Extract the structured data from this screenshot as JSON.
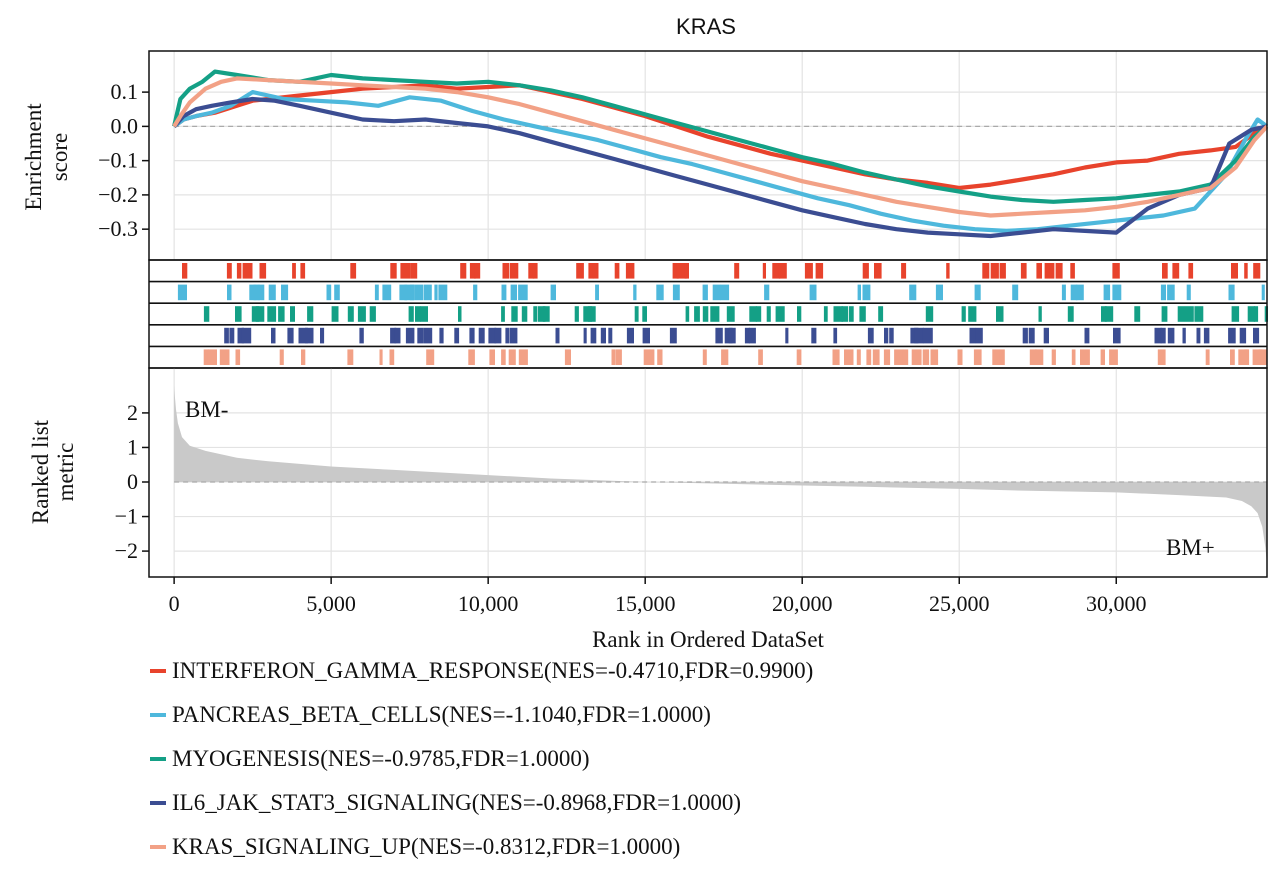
{
  "chart_data": {
    "type": "line",
    "title": "KRAS",
    "xlabel": "Rank in Ordered DataSet",
    "ylabel_top": [
      "Enrichment",
      "score"
    ],
    "ylabel_bottom": [
      "Ranked list",
      "metric"
    ],
    "xlim": [
      -800,
      34800
    ],
    "x_ticks": [
      0,
      5000,
      10000,
      15000,
      20000,
      25000,
      30000
    ],
    "x_tick_labels": [
      "0",
      "5,000",
      "10,000",
      "15,000",
      "20,000",
      "25,000",
      "30,000"
    ],
    "es_ylim": [
      -0.39,
      0.22
    ],
    "es_ticks": [
      0.1,
      0.0,
      -0.1,
      -0.2,
      -0.3
    ],
    "es_tick_labels": [
      "0.1",
      "0.0",
      "−0.1",
      "−0.2",
      "−0.3"
    ],
    "metric_ylim": [
      -2.75,
      3.3
    ],
    "metric_ticks": [
      2,
      1,
      0,
      -1,
      -2
    ],
    "metric_tick_labels": [
      "2",
      "1",
      "0",
      "−1",
      "−2"
    ],
    "grid": true,
    "left_annotation": "BM-",
    "right_annotation": "BM+",
    "legend_position": "bottom",
    "series": [
      {
        "name": "INTERFERON_GAMMA_RESPONSE(NES=-0.4710,FDR=0.9900)",
        "color": "#e8432c",
        "x": [
          0,
          300,
          700,
          1300,
          2000,
          2500,
          3000,
          4000,
          5000,
          6000,
          7000,
          8000,
          9000,
          10000,
          11000,
          12000,
          13000,
          14000,
          15000,
          16000,
          17000,
          18000,
          19000,
          20000,
          21000,
          22000,
          23000,
          24000,
          25000,
          26000,
          27000,
          28000,
          29000,
          30000,
          31000,
          32000,
          33000,
          33800,
          34400,
          34800
        ],
        "y": [
          0.0,
          0.02,
          0.03,
          0.04,
          0.06,
          0.075,
          0.08,
          0.09,
          0.1,
          0.11,
          0.115,
          0.12,
          0.11,
          0.115,
          0.12,
          0.1,
          0.08,
          0.055,
          0.03,
          0.0,
          -0.03,
          -0.055,
          -0.08,
          -0.1,
          -0.12,
          -0.14,
          -0.155,
          -0.165,
          -0.18,
          -0.17,
          -0.155,
          -0.14,
          -0.12,
          -0.105,
          -0.1,
          -0.08,
          -0.07,
          -0.06,
          -0.02,
          0.0
        ]
      },
      {
        "name": "PANCREAS_BETA_CELLS(NES=-1.1040,FDR=1.0000)",
        "color": "#4eb8dc",
        "x": [
          0,
          300,
          700,
          1200,
          1800,
          2500,
          3500,
          4500,
          5500,
          6500,
          7500,
          8500,
          9500,
          10500,
          11500,
          12500,
          13500,
          14500,
          15500,
          16500,
          17500,
          18500,
          19500,
          20500,
          21500,
          22500,
          23500,
          24500,
          25500,
          26500,
          27500,
          28500,
          29500,
          30500,
          31500,
          32500,
          33500,
          34100,
          34500,
          34800
        ],
        "y": [
          0.0,
          0.02,
          0.03,
          0.04,
          0.06,
          0.1,
          0.08,
          0.075,
          0.07,
          0.06,
          0.085,
          0.075,
          0.045,
          0.02,
          0.0,
          -0.02,
          -0.04,
          -0.065,
          -0.09,
          -0.11,
          -0.135,
          -0.16,
          -0.185,
          -0.21,
          -0.23,
          -0.255,
          -0.275,
          -0.29,
          -0.3,
          -0.305,
          -0.3,
          -0.29,
          -0.28,
          -0.27,
          -0.26,
          -0.24,
          -0.14,
          -0.04,
          0.02,
          0.0
        ]
      },
      {
        "name": "MYOGENESIS(NES=-0.9785,FDR=1.0000)",
        "color": "#14a086",
        "x": [
          0,
          200,
          500,
          900,
          1300,
          2000,
          3000,
          4000,
          5000,
          6000,
          7000,
          8000,
          9000,
          10000,
          11000,
          12000,
          13000,
          14000,
          15000,
          16000,
          17000,
          18000,
          19000,
          20000,
          21000,
          22000,
          23000,
          24000,
          25000,
          26000,
          27000,
          28000,
          29000,
          30000,
          31000,
          32000,
          33000,
          33800,
          34400,
          34800
        ],
        "y": [
          0.0,
          0.08,
          0.11,
          0.13,
          0.16,
          0.15,
          0.135,
          0.13,
          0.15,
          0.14,
          0.135,
          0.13,
          0.125,
          0.13,
          0.12,
          0.105,
          0.085,
          0.06,
          0.035,
          0.01,
          -0.015,
          -0.04,
          -0.065,
          -0.09,
          -0.11,
          -0.135,
          -0.155,
          -0.175,
          -0.19,
          -0.205,
          -0.215,
          -0.22,
          -0.215,
          -0.21,
          -0.2,
          -0.19,
          -0.17,
          -0.1,
          -0.03,
          0.0
        ]
      },
      {
        "name": "IL6_JAK_STAT3_SIGNALING(NES=-0.8968,FDR=1.0000)",
        "color": "#3b4d92",
        "x": [
          0,
          300,
          700,
          1200,
          1800,
          2500,
          3200,
          4000,
          5000,
          6000,
          7000,
          8000,
          9000,
          10000,
          11000,
          12000,
          13000,
          14000,
          15000,
          16000,
          17000,
          18000,
          19000,
          20000,
          21000,
          22000,
          23000,
          24000,
          25000,
          26000,
          27000,
          28000,
          29000,
          30000,
          31000,
          32000,
          33000,
          33600,
          34300,
          34800
        ],
        "y": [
          0.0,
          0.03,
          0.05,
          0.06,
          0.07,
          0.08,
          0.075,
          0.06,
          0.04,
          0.02,
          0.015,
          0.02,
          0.01,
          0.0,
          -0.02,
          -0.045,
          -0.07,
          -0.095,
          -0.12,
          -0.145,
          -0.17,
          -0.195,
          -0.22,
          -0.245,
          -0.265,
          -0.285,
          -0.3,
          -0.31,
          -0.315,
          -0.32,
          -0.31,
          -0.3,
          -0.305,
          -0.31,
          -0.24,
          -0.2,
          -0.18,
          -0.05,
          -0.01,
          0.0
        ]
      },
      {
        "name": "KRAS_SIGNALING_UP(NES=-0.8312,FDR=1.0000)",
        "color": "#f2a186",
        "x": [
          0,
          200,
          500,
          1000,
          1500,
          2000,
          3000,
          4000,
          5000,
          6000,
          7000,
          8000,
          9000,
          10000,
          11000,
          12000,
          13000,
          14000,
          15000,
          16000,
          17000,
          18000,
          19000,
          20000,
          21000,
          22000,
          23000,
          24000,
          25000,
          26000,
          27000,
          28000,
          29000,
          30000,
          31000,
          32000,
          33000,
          33800,
          34400,
          34800
        ],
        "y": [
          0.0,
          0.03,
          0.07,
          0.11,
          0.13,
          0.14,
          0.135,
          0.13,
          0.125,
          0.12,
          0.115,
          0.11,
          0.1,
          0.085,
          0.065,
          0.04,
          0.015,
          -0.01,
          -0.035,
          -0.06,
          -0.085,
          -0.11,
          -0.135,
          -0.16,
          -0.18,
          -0.2,
          -0.22,
          -0.235,
          -0.25,
          -0.26,
          -0.255,
          -0.25,
          -0.245,
          -0.235,
          -0.22,
          -0.2,
          -0.18,
          -0.12,
          -0.04,
          0.0
        ]
      }
    ],
    "ranked_metric": {
      "x": [
        0,
        20,
        60,
        120,
        250,
        500,
        1000,
        2000,
        3000,
        5000,
        7000,
        10000,
        12000,
        15000,
        17000,
        20000,
        22000,
        25000,
        27000,
        30000,
        32000,
        33500,
        34000,
        34300,
        34500,
        34650,
        34750,
        34800
      ],
      "y": [
        2.8,
        2.5,
        2.1,
        1.7,
        1.3,
        1.05,
        0.9,
        0.7,
        0.6,
        0.45,
        0.35,
        0.2,
        0.1,
        0.0,
        -0.04,
        -0.1,
        -0.14,
        -0.2,
        -0.25,
        -0.3,
        -0.38,
        -0.45,
        -0.55,
        -0.7,
        -0.9,
        -1.3,
        -1.9,
        -2.4
      ]
    }
  }
}
